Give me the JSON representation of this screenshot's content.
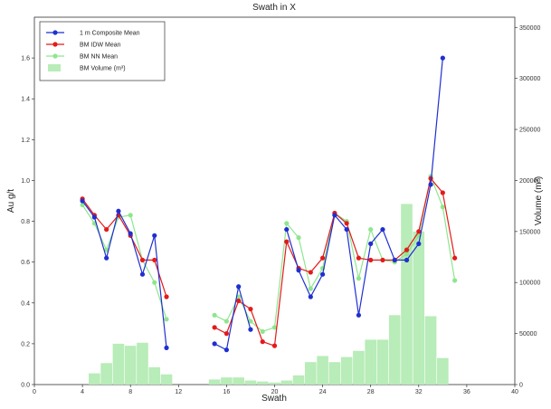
{
  "chart_data": {
    "type": "line",
    "title": "Swath in X",
    "xlabel": "Swath",
    "ylabel": "Au g/t",
    "y2label": "Volume (m³)",
    "xlim": [
      0,
      40
    ],
    "ylim": [
      0,
      1.8
    ],
    "y2lim": [
      0,
      360000
    ],
    "xticks": [
      0,
      4,
      8,
      12,
      16,
      20,
      24,
      28,
      32,
      36,
      40
    ],
    "yticks": [
      0.0,
      0.2,
      0.4,
      0.6,
      0.8,
      1.0,
      1.2,
      1.4,
      1.6
    ],
    "y2ticks": [
      0,
      50000,
      100000,
      150000,
      200000,
      250000,
      300000,
      350000
    ],
    "legend_position": "top-left",
    "grid": false,
    "series": [
      {
        "name": "1 m Composite Mean",
        "kind": "line",
        "color": "#1f2fd0",
        "axis": "left",
        "points": [
          [
            4,
            0.9
          ],
          [
            5,
            0.82
          ],
          [
            6,
            0.62
          ],
          [
            7,
            0.85
          ],
          [
            8,
            0.74
          ],
          [
            9,
            0.54
          ],
          [
            10,
            0.73
          ],
          [
            11,
            0.18
          ],
          [
            15,
            0.2
          ],
          [
            16,
            0.17
          ],
          [
            17,
            0.48
          ],
          [
            18,
            0.27
          ],
          [
            21,
            0.76
          ],
          [
            22,
            0.56
          ],
          [
            23,
            0.43
          ],
          [
            24,
            0.54
          ],
          [
            25,
            0.83
          ],
          [
            26,
            0.76
          ],
          [
            27,
            0.34
          ],
          [
            28,
            0.69
          ],
          [
            29,
            0.76
          ],
          [
            30,
            0.61
          ],
          [
            31,
            0.61
          ],
          [
            32,
            0.69
          ],
          [
            33,
            0.98
          ],
          [
            34,
            1.6
          ]
        ]
      },
      {
        "name": "BM IDW Mean",
        "kind": "line",
        "color": "#e41a1a",
        "axis": "left",
        "points": [
          [
            4,
            0.91
          ],
          [
            5,
            0.83
          ],
          [
            6,
            0.76
          ],
          [
            7,
            0.83
          ],
          [
            8,
            0.73
          ],
          [
            9,
            0.61
          ],
          [
            10,
            0.61
          ],
          [
            11,
            0.43
          ],
          [
            15,
            0.28
          ],
          [
            16,
            0.25
          ],
          [
            17,
            0.41
          ],
          [
            18,
            0.37
          ],
          [
            19,
            0.21
          ],
          [
            20,
            0.19
          ],
          [
            21,
            0.7
          ],
          [
            22,
            0.57
          ],
          [
            23,
            0.55
          ],
          [
            24,
            0.62
          ],
          [
            25,
            0.84
          ],
          [
            26,
            0.79
          ],
          [
            27,
            0.62
          ],
          [
            28,
            0.61
          ],
          [
            29,
            0.61
          ],
          [
            30,
            0.61
          ],
          [
            31,
            0.66
          ],
          [
            32,
            0.75
          ],
          [
            33,
            1.01
          ],
          [
            34,
            0.94
          ],
          [
            35,
            0.62
          ]
        ]
      },
      {
        "name": "BM NN Mean",
        "kind": "line",
        "color": "#8ee68e",
        "axis": "left",
        "points": [
          [
            4,
            0.88
          ],
          [
            5,
            0.79
          ],
          [
            6,
            0.66
          ],
          [
            7,
            0.82
          ],
          [
            8,
            0.83
          ],
          [
            9,
            0.61
          ],
          [
            10,
            0.5
          ],
          [
            11,
            0.32
          ],
          [
            15,
            0.34
          ],
          [
            16,
            0.31
          ],
          [
            17,
            0.43
          ],
          [
            18,
            0.31
          ],
          [
            19,
            0.26
          ],
          [
            20,
            0.28
          ],
          [
            21,
            0.79
          ],
          [
            22,
            0.72
          ],
          [
            23,
            0.47
          ],
          [
            24,
            0.57
          ],
          [
            25,
            0.84
          ],
          [
            26,
            0.8
          ],
          [
            27,
            0.52
          ],
          [
            28,
            0.76
          ],
          [
            29,
            0.61
          ],
          [
            30,
            0.6
          ],
          [
            31,
            0.64
          ],
          [
            32,
            0.73
          ],
          [
            33,
            1.02
          ],
          [
            34,
            0.87
          ],
          [
            35,
            0.51
          ]
        ]
      },
      {
        "name": "BM Volume (m³)",
        "kind": "bar",
        "color": "#b8ecb8",
        "axis": "right",
        "points": [
          [
            5,
            11000
          ],
          [
            6,
            21000
          ],
          [
            7,
            40000
          ],
          [
            8,
            38000
          ],
          [
            9,
            41000
          ],
          [
            10,
            17000
          ],
          [
            11,
            10000
          ],
          [
            15,
            5000
          ],
          [
            16,
            7000
          ],
          [
            17,
            7000
          ],
          [
            18,
            4000
          ],
          [
            19,
            3000
          ],
          [
            20,
            2000
          ],
          [
            21,
            4000
          ],
          [
            22,
            9000
          ],
          [
            23,
            22000
          ],
          [
            24,
            28000
          ],
          [
            25,
            22000
          ],
          [
            26,
            27000
          ],
          [
            27,
            33000
          ],
          [
            28,
            44000
          ],
          [
            29,
            44000
          ],
          [
            30,
            68000
          ],
          [
            31,
            177000
          ],
          [
            32,
            150000
          ],
          [
            33,
            67000
          ],
          [
            34,
            26000
          ]
        ]
      }
    ]
  }
}
